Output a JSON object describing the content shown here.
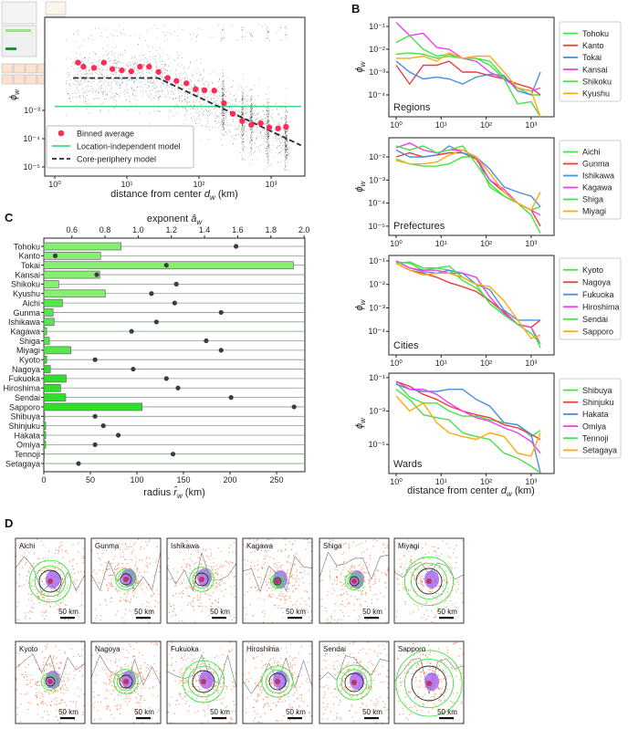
{
  "panel_labels": {
    "b": "B",
    "c": "C",
    "d": "D"
  },
  "chart_data": [
    {
      "id": "A",
      "type": "scatter",
      "xscale": "log",
      "yscale": "log",
      "xlim": [
        0.72,
        2950
      ],
      "ylim": [
        4.8e-06,
        1.95
      ],
      "xlabel": {
        "pre": "distance from center ",
        "sym": "d",
        "sub": "w",
        "post": " (km)"
      },
      "ylabel": {
        "sym": "ϕ",
        "sub": "w"
      },
      "xticks": [
        {
          "v": 1,
          "label": "10⁰"
        },
        {
          "v": 10,
          "label": "10¹"
        },
        {
          "v": 100,
          "label": "10²"
        },
        {
          "v": 1000,
          "label": "10³"
        }
      ],
      "yticks": [
        {
          "v": 0.001,
          "label": "10⁻³"
        },
        {
          "v": 0.0001,
          "label": "10⁻⁴"
        },
        {
          "v": 1e-05,
          "label": "10⁻⁵"
        }
      ],
      "legend": {
        "placement": "lower-left",
        "entries": [
          "Binned average",
          "Location-independent model",
          "Core-periphery model"
        ]
      },
      "binned_average": {
        "color": "#ff2d55",
        "x": [
          2.1,
          2.5,
          3.5,
          4.8,
          6.3,
          8.5,
          11.5,
          15.2,
          20.3,
          27.5,
          36.8,
          48.7,
          67,
          90,
          119,
          163,
          222,
          294,
          397,
          532,
          719,
          944,
          1250,
          1610
        ],
        "y": [
          0.049,
          0.035,
          0.032,
          0.049,
          0.029,
          0.026,
          0.024,
          0.035,
          0.035,
          0.023,
          0.014,
          0.011,
          0.0091,
          0.0056,
          0.0052,
          0.005,
          0.0018,
          0.00076,
          0.00042,
          0.00031,
          0.00035,
          0.00025,
          0.00023,
          0.00026
        ]
      },
      "location_independent": {
        "color": "#3ddc84",
        "y": 0.00138,
        "x": [
          1,
          2600
        ]
      },
      "core_periphery": {
        "color": "#1f2a44",
        "x": [
          1.8,
          27,
          2600
        ],
        "y": [
          0.014,
          0.014,
          5.8e-05
        ]
      },
      "scatter_color": "#1a2a1a"
    },
    {
      "id": "B",
      "type": "line",
      "xscale": "log",
      "yscale": "log",
      "x": [
        1,
        2,
        4,
        8,
        15,
        30,
        60,
        120,
        250,
        500,
        1000,
        1600
      ],
      "xticks": [
        "10⁰",
        "10¹",
        "10²",
        "10³"
      ],
      "xlabel": {
        "pre": "distance from center ",
        "sym": "d",
        "sub": "w",
        "post": " (km)"
      },
      "ylabel": {
        "sym": "ϕ",
        "sub": "w"
      },
      "subplots": [
        {
          "title": "Regions",
          "ylim_log": [
            -4.96,
            -0.6
          ],
          "yticks": [
            {
              "e": -1,
              "label": "10⁻¹"
            },
            {
              "e": -2,
              "label": "10⁻²"
            },
            {
              "e": -3,
              "label": "10⁻³"
            },
            {
              "e": -4,
              "label": "10⁻⁴"
            }
          ],
          "series": [
            {
              "name": "Tohoku",
              "color": "#3ee83e",
              "values": [
                0.006,
                0.007,
                0.006,
                0.004,
                0.005,
                0.004,
                0.004,
                0.003,
                0.0006,
                0.0002,
                0.0001,
                0.0001
              ]
            },
            {
              "name": "Kanto",
              "color": "#f23b3b",
              "values": [
                0.002,
                0.0003,
                0.002,
                0.002,
                0.003,
                0.001,
                0.001,
                0.0007,
                0.0005,
                0.0003,
                0.0002,
                0.0001
              ]
            },
            {
              "name": "Tokai",
              "color": "#4a8fe0",
              "values": [
                0.003,
                0.001,
                0.0005,
                0.0006,
                0.0005,
                0.0003,
                0.0006,
                0.0008,
                0.0007,
                0.00015,
                0.0001,
                0.001
              ]
            },
            {
              "name": "Kansai",
              "color": "#f23ef2",
              "values": [
                0.15,
                0.04,
                0.05,
                0.012,
                0.01,
                0.004,
                0.003,
                0.001,
                0.0005,
                0.0002,
                0.00015,
                0.0002
              ]
            },
            {
              "name": "Shikoku",
              "color": "#4ade4a",
              "values": [
                0.02,
                0.04,
                0.01,
                0.005,
                0.006,
                0.004,
                0.004,
                0.002,
                0.0005,
                4e-05,
                5e-05,
                1e-05
              ]
            },
            {
              "name": "Kyushu",
              "color": "#ffab10",
              "values": [
                0.004,
                0.004,
                0.005,
                0.003,
                0.007,
                0.004,
                0.005,
                0.005,
                0.001,
                0.0002,
                0.00015,
                1e-05
              ]
            }
          ]
        },
        {
          "title": "Prefectures",
          "ylim_log": [
            -5.4,
            -1.17
          ],
          "yticks": [
            {
              "e": -2,
              "label": "10⁻²"
            },
            {
              "e": -3,
              "label": "10⁻³"
            },
            {
              "e": -4,
              "label": "10⁻⁴"
            },
            {
              "e": -5,
              "label": "10⁻⁵"
            }
          ],
          "series": [
            {
              "name": "Aichi",
              "color": "#3ee83e",
              "values": [
                0.008,
                0.005,
                0.004,
                0.004,
                0.005,
                0.01,
                0.01,
                0.0005,
                0.0002,
                0.0001,
                5e-05,
                7e-05
              ]
            },
            {
              "name": "Gunma",
              "color": "#f23b3b",
              "values": [
                0.01,
                0.015,
                0.01,
                0.012,
                0.015,
                0.015,
                0.008,
                0.001,
                0.0003,
                0.0001,
                5e-05,
                1e-05
              ]
            },
            {
              "name": "Ishikawa",
              "color": "#4a8fe0",
              "values": [
                0.02,
                0.01,
                0.01,
                0.012,
                0.03,
                0.015,
                0.01,
                0.003,
                0.0005,
                0.0003,
                0.0002,
                7e-05
              ]
            },
            {
              "name": "Kagawa",
              "color": "#f23ef2",
              "values": [
                0.025,
                0.04,
                0.02,
                0.015,
                0.02,
                0.02,
                0.01,
                0.001,
                0.0004,
                0.0001,
                5e-05,
                3e-05
              ]
            },
            {
              "name": "Shiga",
              "color": "#4ade4a",
              "values": [
                0.03,
                0.02,
                0.03,
                0.015,
                0.02,
                0.03,
                0.005,
                0.0007,
                0.0002,
                0.0001,
                3e-05,
                5e-06
              ]
            },
            {
              "name": "Miyagi",
              "color": "#ffab10",
              "values": [
                0.007,
                0.005,
                0.005,
                0.006,
                0.012,
                0.02,
                0.01,
                0.002,
                0.0003,
                0.0001,
                5e-05,
                0.0003
              ]
            }
          ]
        },
        {
          "title": "Cities",
          "ylim_log": [
            -5.0,
            -0.77
          ],
          "yticks": [
            {
              "e": -1,
              "label": "10⁻¹"
            },
            {
              "e": -2,
              "label": "10⁻²"
            },
            {
              "e": -3,
              "label": "10⁻³"
            },
            {
              "e": -4,
              "label": "10⁻⁴"
            }
          ],
          "series": [
            {
              "name": "Kyoto",
              "color": "#3ee83e",
              "values": [
                0.09,
                0.08,
                0.04,
                0.05,
                0.04,
                0.015,
                0.007,
                0.002,
                0.0006,
                0.0002,
                0.00015,
                2e-05
              ]
            },
            {
              "name": "Nagoya",
              "color": "#f23b3b",
              "values": [
                0.08,
                0.04,
                0.03,
                0.02,
                0.012,
                0.008,
                0.005,
                0.002,
                0.0007,
                0.0002,
                0.00015,
                0.0003
              ]
            },
            {
              "name": "Fukuoka",
              "color": "#4a8fe0",
              "values": [
                0.1,
                0.05,
                0.035,
                0.03,
                0.04,
                0.03,
                0.01,
                0.006,
                0.0008,
                0.0003,
                0.0003,
                0.0003
              ]
            },
            {
              "name": "Hiroshima",
              "color": "#f23ef2",
              "values": [
                0.1,
                0.05,
                0.04,
                0.04,
                0.03,
                0.03,
                0.02,
                0.003,
                0.0006,
                0.0002,
                0.00015,
                3e-05
              ]
            },
            {
              "name": "Sendai",
              "color": "#4ade4a",
              "values": [
                0.08,
                0.09,
                0.05,
                0.05,
                0.06,
                0.02,
                0.01,
                0.0015,
                0.0005,
                0.0002,
                8e-05,
                3e-05
              ]
            },
            {
              "name": "Sapporo",
              "color": "#ffab10",
              "values": [
                0.08,
                0.04,
                0.025,
                0.03,
                0.03,
                0.02,
                0.01,
                0.008,
                0.002,
                0.0003,
                5e-05,
                7e-05
              ]
            }
          ]
        },
        {
          "title": "Wards",
          "ylim_log": [
            -6.74,
            -0.73
          ],
          "yticks": [
            {
              "e": -1,
              "label": "10⁻¹"
            },
            {
              "e": -3,
              "label": "10⁻³"
            },
            {
              "e": -5,
              "label": "10⁻⁵"
            }
          ],
          "series": [
            {
              "name": "Shibuya",
              "color": "#3ee83e",
              "values": [
                0.05,
                0.007,
                0.003,
                0.003,
                0.001,
                0.0005,
                0.0005,
                0.0003,
                0.0002,
                0.00015,
                3e-05,
                7e-05
              ]
            },
            {
              "name": "Shinjuku",
              "color": "#f23b3b",
              "values": [
                0.06,
                0.03,
                0.01,
                0.005,
                0.002,
                0.001,
                0.0006,
                0.0004,
                0.00015,
                0.0001,
                4e-05,
                2e-05
              ]
            },
            {
              "name": "Hakata",
              "color": "#4a8fe0",
              "values": [
                0.04,
                0.02,
                0.015,
                0.015,
                0.02,
                0.02,
                0.005,
                0.002,
                0.0002,
                0.00015,
                4e-05,
                2e-07
              ]
            },
            {
              "name": "Omiya",
              "color": "#f23ef2",
              "values": [
                0.06,
                0.02,
                0.02,
                0.01,
                0.003,
                0.001,
                0.0004,
                0.00025,
                0.0001,
                5e-05,
                1.5e-05,
                3e-06
              ]
            },
            {
              "name": "Tennoji",
              "color": "#4ade4a",
              "values": [
                0.02,
                0.005,
                0.0006,
                0.0004,
                0.0003,
                5e-05,
                3e-05,
                2e-05,
                3e-06,
                1.5e-06,
                5e-07,
                2e-07
              ]
            },
            {
              "name": "Setagaya",
              "color": "#ffab10",
              "values": [
                0.008,
                0.001,
                0.003,
                0.0002,
                5e-05,
                3e-05,
                2e-05,
                5e-05,
                3e-05,
                3e-06,
                2e-06,
                5e-05
              ]
            }
          ]
        }
      ]
    },
    {
      "id": "C",
      "type": "bar",
      "orientation": "horizontal",
      "xlabel": {
        "pre": "radius ",
        "sym": "r̂",
        "sub": "w",
        "post": " (km)"
      },
      "x2label": {
        "pre": "exponent ",
        "sym": "â",
        "sub": "w"
      },
      "xlim": [
        0,
        280
      ],
      "x2lim": [
        0.431,
        2.0
      ],
      "xticks": [
        0,
        50,
        100,
        150,
        200,
        250
      ],
      "x2ticks": [
        "0.6",
        "0.8",
        "1.0",
        "1.2",
        "1.4",
        "1.6",
        "1.8",
        "2.0"
      ],
      "categories": [
        "Tohoku",
        "Kanto",
        "Tokai",
        "Kansai",
        "Shikoku",
        "Kyushu",
        "Aichi",
        "Gunma",
        "Ishikawa",
        "Kagawa",
        "Shiga",
        "Miyagi",
        "Kyoto",
        "Nagoya",
        "Fukuoka",
        "Hiroshima",
        "Sendai",
        "Sapporo",
        "Shibuya",
        "Shinjuku",
        "Hakata",
        "Omiya",
        "Tennoji",
        "Setagaya"
      ],
      "levels": [
        "region",
        "region",
        "region",
        "region",
        "region",
        "region",
        "prefecture",
        "prefecture",
        "prefecture",
        "prefecture",
        "prefecture",
        "prefecture",
        "city",
        "city",
        "city",
        "city",
        "city",
        "city",
        "ward",
        "ward",
        "ward",
        "ward",
        "ward",
        "ward"
      ],
      "radius_km": [
        83,
        61,
        268,
        60,
        16,
        66,
        20,
        10,
        11,
        3,
        6,
        29,
        3,
        7,
        24,
        18,
        23.5,
        105.5,
        1,
        2,
        2,
        2,
        0.5,
        0
      ],
      "exponent": [
        1.59,
        0.5,
        1.17,
        0.75,
        1.23,
        1.08,
        1.22,
        1.5,
        1.11,
        0.96,
        1.41,
        1.5,
        0.74,
        0.97,
        1.17,
        1.24,
        1.56,
        1.94,
        0.74,
        0.79,
        0.88,
        0.74,
        1.21,
        0.64
      ],
      "colors": {
        "region": "#86ef72",
        "prefecture": "#55e84d",
        "city": "#2ee02a",
        "ward": "#2ee02a",
        "dot": "#3c3c3c"
      }
    }
  ],
  "maps": {
    "scale_label": "50 km",
    "row1": [
      "Aichi",
      "Gunma",
      "Ishikawa",
      "Kagawa",
      "Shiga",
      "Miyagi"
    ],
    "row2": [
      "Kyoto",
      "Nagoya",
      "Fukuoka",
      "Hiroshima",
      "Sendai",
      "Sapporo"
    ]
  }
}
